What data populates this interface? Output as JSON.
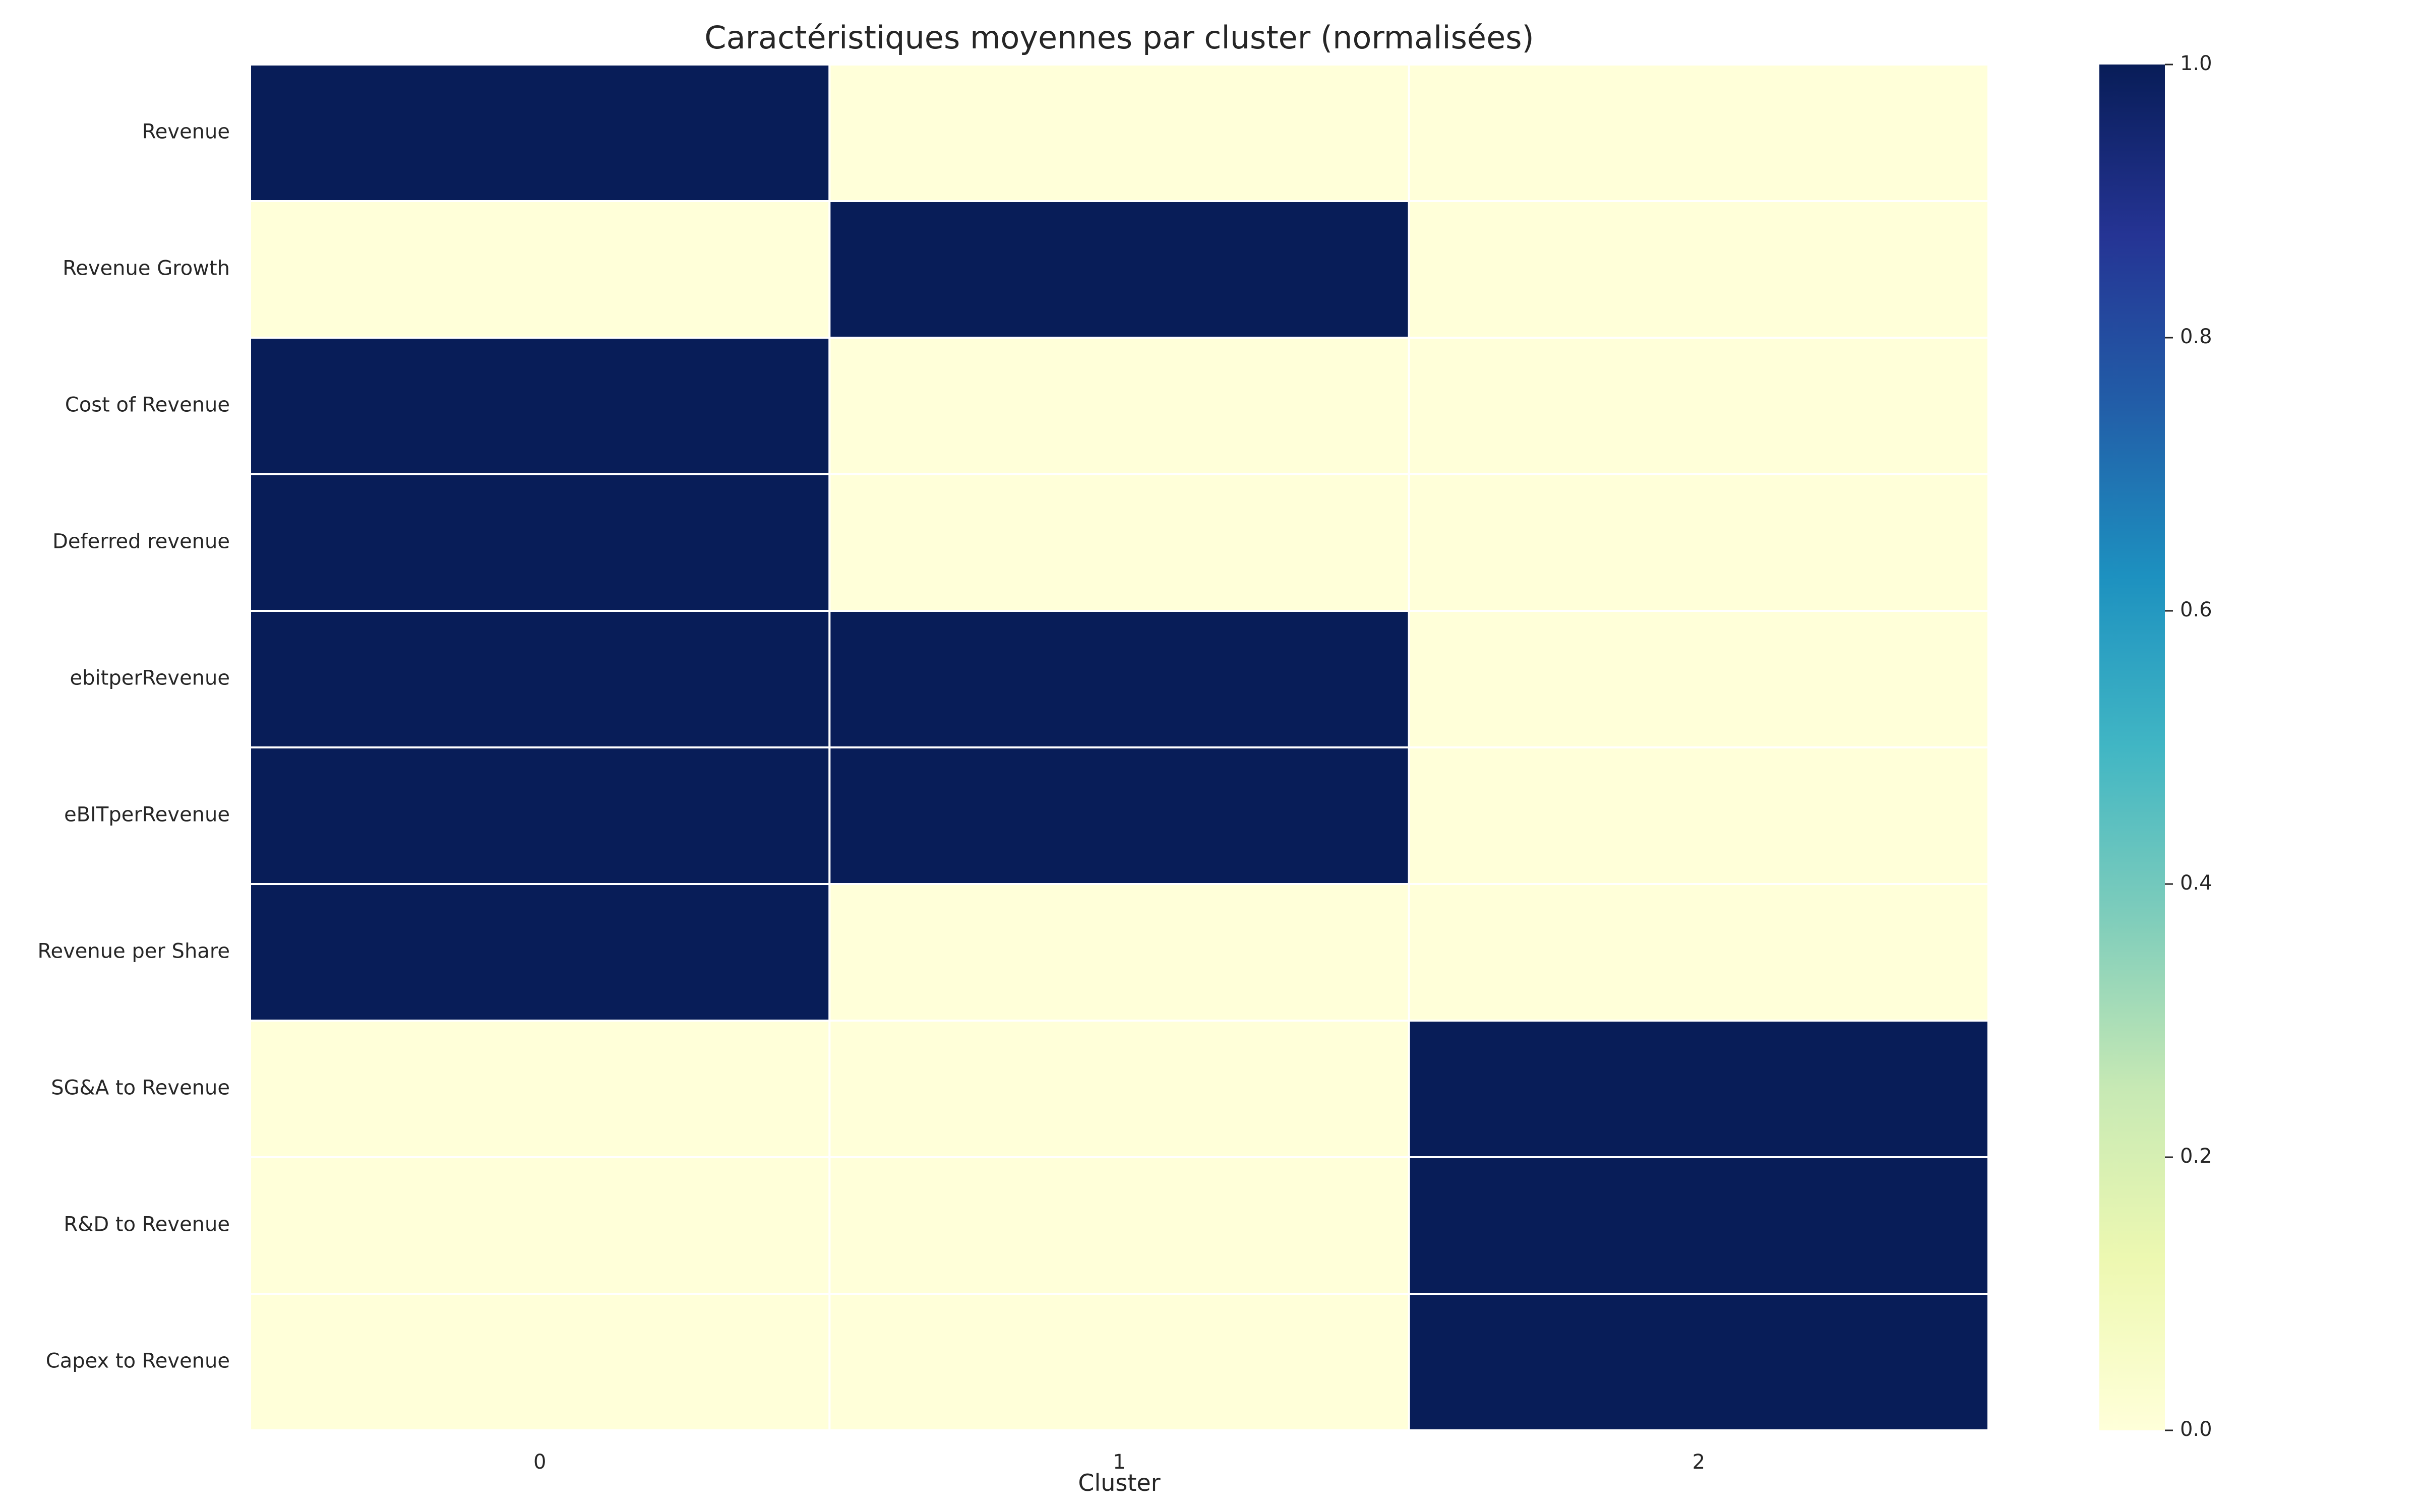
{
  "chart_data": {
    "type": "heatmap",
    "title": "Caractéristiques moyennes par cluster (normalisées)",
    "xlabel": "Cluster",
    "ylabel": "",
    "x_categories": [
      "0",
      "1",
      "2"
    ],
    "y_categories": [
      "Revenue",
      "Revenue Growth",
      "Cost of Revenue",
      "Deferred revenue",
      "ebitperRevenue",
      "eBITperRevenue",
      "Revenue per Share",
      "SG&A to Revenue",
      "R&D to Revenue",
      "Capex to Revenue"
    ],
    "values": [
      [
        1.0,
        0.0,
        0.0
      ],
      [
        0.0,
        1.0,
        0.0
      ],
      [
        1.0,
        0.0,
        0.0
      ],
      [
        1.0,
        0.0,
        0.0
      ],
      [
        1.0,
        1.0,
        0.0
      ],
      [
        1.0,
        1.0,
        0.0
      ],
      [
        1.0,
        0.0,
        0.0
      ],
      [
        0.0,
        0.0,
        1.0
      ],
      [
        0.0,
        0.0,
        1.0
      ],
      [
        0.0,
        0.0,
        1.0
      ]
    ],
    "colormap": "YlGnBu",
    "colorbar": {
      "range": [
        0.0,
        1.0
      ],
      "ticks": [
        "0.0",
        "0.2",
        "0.4",
        "0.6",
        "0.8",
        "1.0"
      ],
      "placement": "right"
    },
    "grid": false
  },
  "colors": {
    "low": "#ffffd9",
    "high": "#081d58",
    "cell_border": "#ffffff",
    "text": "#262626"
  }
}
